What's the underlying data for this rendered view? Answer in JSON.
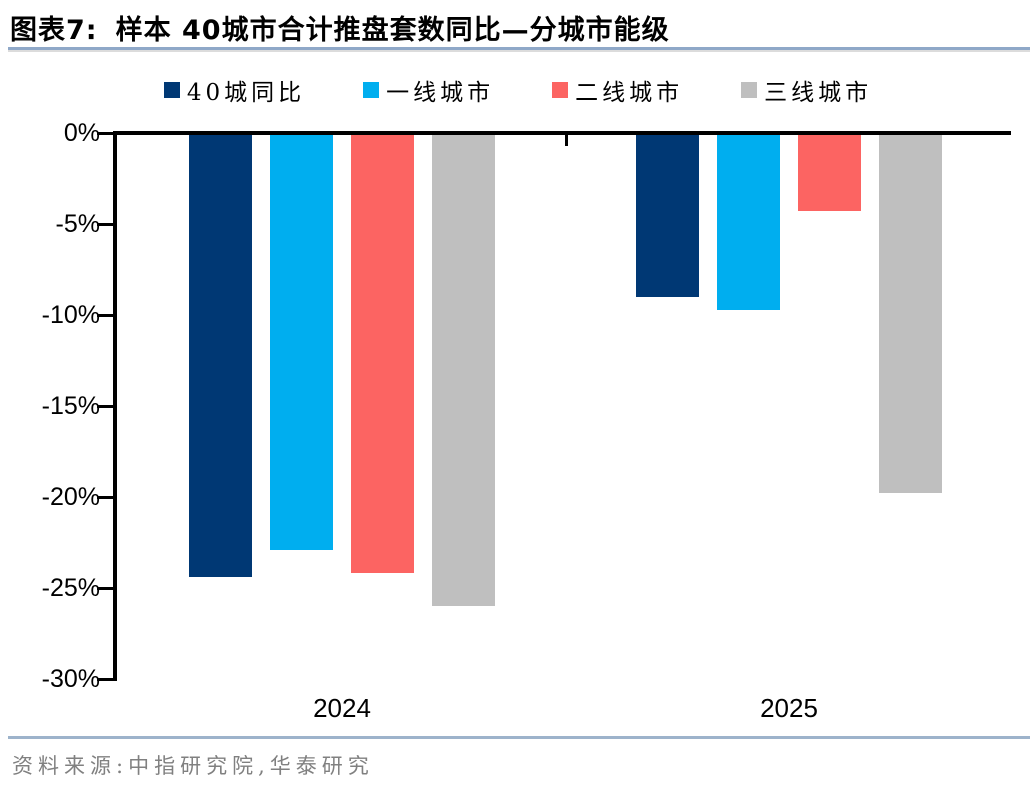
{
  "title": {
    "prefix": "图表7:",
    "text": "样本 40城市合计推盘套数同比—分城市能级"
  },
  "source": "资料来源:中指研究院,华泰研究",
  "colors": {
    "series_navy": "#003874",
    "series_blue": "#00AEEF",
    "series_red": "#FC6462",
    "series_gray": "#BFBFBF",
    "title_rule": "#8FA8C8",
    "footer_rule": "#9DB3CB",
    "axis": "#000000",
    "source_text": "#808080"
  },
  "chart_data": {
    "type": "bar",
    "title": "样本 40城市合计推盘套数同比—分城市能级",
    "categories": [
      "2024",
      "2025"
    ],
    "series": [
      {
        "name": "40城同比",
        "color": "#003874",
        "values": [
          -24.4,
          -9.0
        ]
      },
      {
        "name": "一线城市",
        "color": "#00AEEF",
        "values": [
          -22.9,
          -9.7
        ]
      },
      {
        "name": "二线城市",
        "color": "#FC6462",
        "values": [
          -24.2,
          -4.3
        ]
      },
      {
        "name": "三线城市",
        "color": "#BFBFBF",
        "values": [
          -26.0,
          -19.8
        ]
      }
    ],
    "xlabel": "",
    "ylabel": "",
    "ylim": [
      -30,
      0
    ],
    "ytick_labels": [
      "0%",
      "-5%",
      "-10%",
      "-15%",
      "-20%",
      "-25%",
      "-30%"
    ],
    "ytick_values": [
      0,
      -5,
      -10,
      -15,
      -20,
      -25,
      -30
    ],
    "unit": "%",
    "grid": false,
    "legend_position": "top"
  }
}
